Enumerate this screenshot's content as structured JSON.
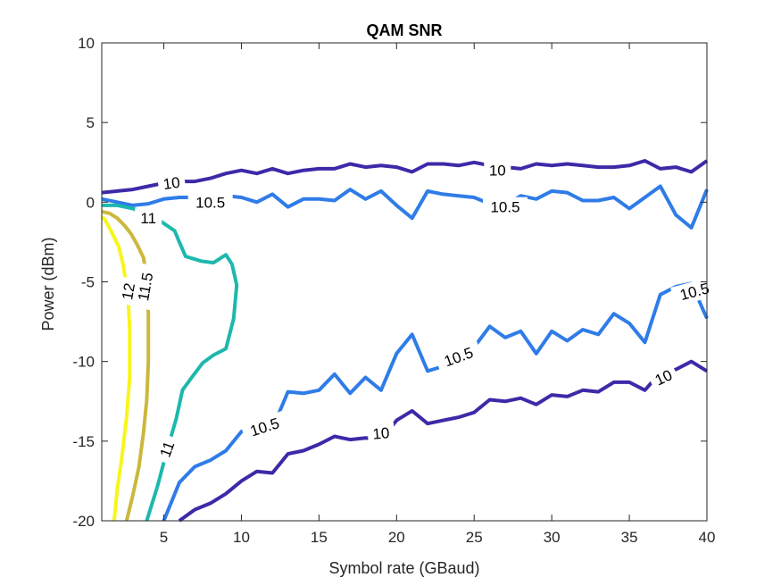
{
  "chart_data": {
    "type": "contour",
    "title": "QAM SNR",
    "xlabel": "Symbol rate (GBaud)",
    "ylabel": "Power (dBm)",
    "xlim": [
      1,
      40
    ],
    "ylim": [
      -20,
      10
    ],
    "xticks": [
      5,
      10,
      15,
      20,
      25,
      30,
      35,
      40
    ],
    "yticks": [
      -20,
      -15,
      -10,
      -5,
      0,
      5,
      10
    ],
    "grid": false,
    "series": [
      {
        "level": 10,
        "color": "#3c2aa8",
        "points": [
          [
            1,
            0.6
          ],
          [
            2,
            0.7
          ],
          [
            3,
            0.8
          ],
          [
            4,
            1.0
          ],
          [
            5,
            1.2
          ],
          [
            6,
            1.3
          ],
          [
            7,
            1.3
          ],
          [
            8,
            1.5
          ],
          [
            9,
            1.8
          ],
          [
            10,
            2.0
          ],
          [
            11,
            1.8
          ],
          [
            12,
            2.1
          ],
          [
            13,
            1.8
          ],
          [
            14,
            2.0
          ],
          [
            15,
            2.1
          ],
          [
            16,
            2.1
          ],
          [
            17,
            2.4
          ],
          [
            18,
            2.2
          ],
          [
            19,
            2.3
          ],
          [
            20,
            2.2
          ],
          [
            21,
            1.9
          ],
          [
            22,
            2.4
          ],
          [
            23,
            2.4
          ],
          [
            24,
            2.3
          ],
          [
            25,
            2.5
          ],
          [
            26,
            2.3
          ],
          [
            27,
            2.2
          ],
          [
            28,
            2.1
          ],
          [
            29,
            2.4
          ],
          [
            30,
            2.3
          ],
          [
            31,
            2.4
          ],
          [
            32,
            2.3
          ],
          [
            33,
            2.2
          ],
          [
            34,
            2.2
          ],
          [
            35,
            2.3
          ],
          [
            36,
            2.6
          ],
          [
            37,
            2.1
          ],
          [
            38,
            2.2
          ],
          [
            39,
            1.9
          ],
          [
            40,
            2.6
          ]
        ]
      },
      {
        "level": 10.5,
        "color": "#2f7ce8",
        "points": [
          [
            1,
            0.2
          ],
          [
            2,
            0.0
          ],
          [
            3,
            -0.2
          ],
          [
            4,
            -0.1
          ],
          [
            5,
            0.2
          ],
          [
            6,
            0.3
          ],
          [
            7,
            0.3
          ],
          [
            8,
            0.4
          ],
          [
            9,
            0.4
          ],
          [
            10,
            0.3
          ],
          [
            11,
            0.0
          ],
          [
            12,
            0.5
          ],
          [
            13,
            -0.3
          ],
          [
            14,
            0.2
          ],
          [
            15,
            0.2
          ],
          [
            16,
            0.1
          ],
          [
            17,
            0.8
          ],
          [
            18,
            0.2
          ],
          [
            19,
            0.7
          ],
          [
            20,
            -0.2
          ],
          [
            21,
            -1.0
          ],
          [
            22,
            0.7
          ],
          [
            23,
            0.5
          ],
          [
            24,
            0.4
          ],
          [
            25,
            0.3
          ],
          [
            26,
            -0.1
          ],
          [
            27,
            -0.2
          ],
          [
            28,
            0.4
          ],
          [
            29,
            0.2
          ],
          [
            30,
            0.7
          ],
          [
            31,
            0.6
          ],
          [
            32,
            0.1
          ],
          [
            33,
            0.1
          ],
          [
            34,
            0.3
          ],
          [
            35,
            -0.4
          ],
          [
            36,
            0.3
          ],
          [
            37,
            1.0
          ],
          [
            38,
            -0.8
          ],
          [
            39,
            -1.6
          ],
          [
            40,
            0.8
          ]
        ]
      },
      {
        "level": 10.5,
        "color": "#2f7ce8",
        "points": [
          [
            5,
            -20
          ],
          [
            6,
            -17.6
          ],
          [
            7,
            -16.6
          ],
          [
            8,
            -16.2
          ],
          [
            9,
            -15.6
          ],
          [
            10,
            -14.4
          ],
          [
            11,
            -14.0
          ],
          [
            12,
            -14.2
          ],
          [
            13,
            -11.9
          ],
          [
            14,
            -12.0
          ],
          [
            15,
            -11.8
          ],
          [
            16,
            -10.8
          ],
          [
            17,
            -12.0
          ],
          [
            18,
            -11.0
          ],
          [
            19,
            -11.8
          ],
          [
            20,
            -9.5
          ],
          [
            21,
            -8.3
          ],
          [
            22,
            -10.6
          ],
          [
            23,
            -10.3
          ],
          [
            24,
            -9.8
          ],
          [
            25,
            -9.1
          ],
          [
            26,
            -7.8
          ],
          [
            27,
            -8.5
          ],
          [
            28,
            -8.1
          ],
          [
            29,
            -9.5
          ],
          [
            30,
            -8.1
          ],
          [
            31,
            -8.7
          ],
          [
            32,
            -8.0
          ],
          [
            33,
            -8.3
          ],
          [
            34,
            -7.0
          ],
          [
            35,
            -7.6
          ],
          [
            36,
            -8.8
          ],
          [
            37,
            -5.8
          ],
          [
            38,
            -5.3
          ],
          [
            39,
            -5.1
          ],
          [
            40,
            -7.3
          ]
        ]
      },
      {
        "level": 10,
        "color": "#3c2aa8",
        "points": [
          [
            6,
            -20
          ],
          [
            7,
            -19.3
          ],
          [
            8,
            -18.9
          ],
          [
            9,
            -18.3
          ],
          [
            10,
            -17.5
          ],
          [
            11,
            -16.9
          ],
          [
            12,
            -17.0
          ],
          [
            13,
            -15.8
          ],
          [
            14,
            -15.6
          ],
          [
            15,
            -15.2
          ],
          [
            16,
            -14.7
          ],
          [
            17,
            -14.9
          ],
          [
            18,
            -14.8
          ],
          [
            19,
            -14.9
          ],
          [
            20,
            -13.7
          ],
          [
            21,
            -13.1
          ],
          [
            22,
            -13.9
          ],
          [
            23,
            -13.7
          ],
          [
            24,
            -13.5
          ],
          [
            25,
            -13.2
          ],
          [
            26,
            -12.4
          ],
          [
            27,
            -12.5
          ],
          [
            28,
            -12.3
          ],
          [
            29,
            -12.7
          ],
          [
            30,
            -12.1
          ],
          [
            31,
            -12.2
          ],
          [
            32,
            -11.8
          ],
          [
            33,
            -11.9
          ],
          [
            34,
            -11.3
          ],
          [
            35,
            -11.3
          ],
          [
            36,
            -11.8
          ],
          [
            37,
            -10.7
          ],
          [
            38,
            -10.5
          ],
          [
            39,
            -10.0
          ],
          [
            40,
            -10.6
          ]
        ]
      },
      {
        "level": 11,
        "color": "#1db8ad",
        "points": [
          [
            3.9,
            -20
          ],
          [
            4.6,
            -17.8
          ],
          [
            5.2,
            -15.6
          ],
          [
            5.8,
            -13.6
          ],
          [
            6.2,
            -11.8
          ],
          [
            6.8,
            -11.0
          ],
          [
            7.5,
            -10.1
          ],
          [
            8.2,
            -9.6
          ],
          [
            9.0,
            -9.2
          ],
          [
            9.5,
            -7.3
          ],
          [
            9.7,
            -5.2
          ],
          [
            9.4,
            -3.9
          ],
          [
            9.0,
            -3.3
          ],
          [
            8.2,
            -3.8
          ],
          [
            7.4,
            -3.7
          ],
          [
            6.4,
            -3.4
          ],
          [
            6.0,
            -2.5
          ],
          [
            5.7,
            -1.8
          ],
          [
            5.1,
            -1.4
          ],
          [
            4.5,
            -1.0
          ],
          [
            3.8,
            -0.7
          ],
          [
            3.0,
            -0.4
          ],
          [
            2.5,
            -0.3
          ],
          [
            2.0,
            -0.2
          ],
          [
            1.0,
            -0.2
          ]
        ]
      },
      {
        "level": 11.5,
        "color": "#cbb83d",
        "points": [
          [
            2.6,
            -20
          ],
          [
            3.0,
            -18.4
          ],
          [
            3.4,
            -16.6
          ],
          [
            3.7,
            -14.4
          ],
          [
            3.9,
            -12.4
          ],
          [
            4.0,
            -10.0
          ],
          [
            4.0,
            -7.0
          ],
          [
            3.9,
            -4.9
          ],
          [
            3.7,
            -3.5
          ],
          [
            3.3,
            -2.7
          ],
          [
            2.9,
            -2.0
          ],
          [
            2.5,
            -1.5
          ],
          [
            2.0,
            -1.0
          ],
          [
            1.5,
            -0.7
          ],
          [
            1.0,
            -0.6
          ]
        ]
      },
      {
        "level": 12,
        "color": "#f8f51c",
        "points": [
          [
            1.8,
            -20
          ],
          [
            2.0,
            -18.0
          ],
          [
            2.3,
            -16.0
          ],
          [
            2.6,
            -13.5
          ],
          [
            2.8,
            -11.0
          ],
          [
            2.8,
            -8.0
          ],
          [
            2.7,
            -6.1
          ],
          [
            2.4,
            -4.0
          ],
          [
            2.1,
            -2.8
          ],
          [
            1.6,
            -1.8
          ],
          [
            1.2,
            -1.1
          ],
          [
            1.0,
            -0.9
          ]
        ]
      }
    ],
    "labels": [
      {
        "text": "10",
        "x": 5.5,
        "y": 1.2,
        "rotate": -8
      },
      {
        "text": "10",
        "x": 26.5,
        "y": 2.0,
        "rotate": 0
      },
      {
        "text": "10",
        "x": 19.0,
        "y": -14.5,
        "rotate": -5
      },
      {
        "text": "10",
        "x": 37.2,
        "y": -11.0,
        "rotate": -25
      },
      {
        "text": "10.5",
        "x": 8.0,
        "y": 0.0,
        "rotate": 0
      },
      {
        "text": "10.5",
        "x": 27.0,
        "y": -0.3,
        "rotate": 0
      },
      {
        "text": "10.5",
        "x": 24.0,
        "y": -9.7,
        "rotate": -20
      },
      {
        "text": "10.5",
        "x": 11.5,
        "y": -14.1,
        "rotate": -18
      },
      {
        "text": "10.5",
        "x": 39.2,
        "y": -5.6,
        "rotate": -15
      },
      {
        "text": "11",
        "x": 4.0,
        "y": -1.0,
        "rotate": 0
      },
      {
        "text": "11",
        "x": 5.2,
        "y": -15.5,
        "rotate": -70
      },
      {
        "text": "11.5",
        "x": 3.8,
        "y": -5.3,
        "rotate": -80
      },
      {
        "text": "12",
        "x": 2.7,
        "y": -5.6,
        "rotate": -80
      }
    ]
  }
}
